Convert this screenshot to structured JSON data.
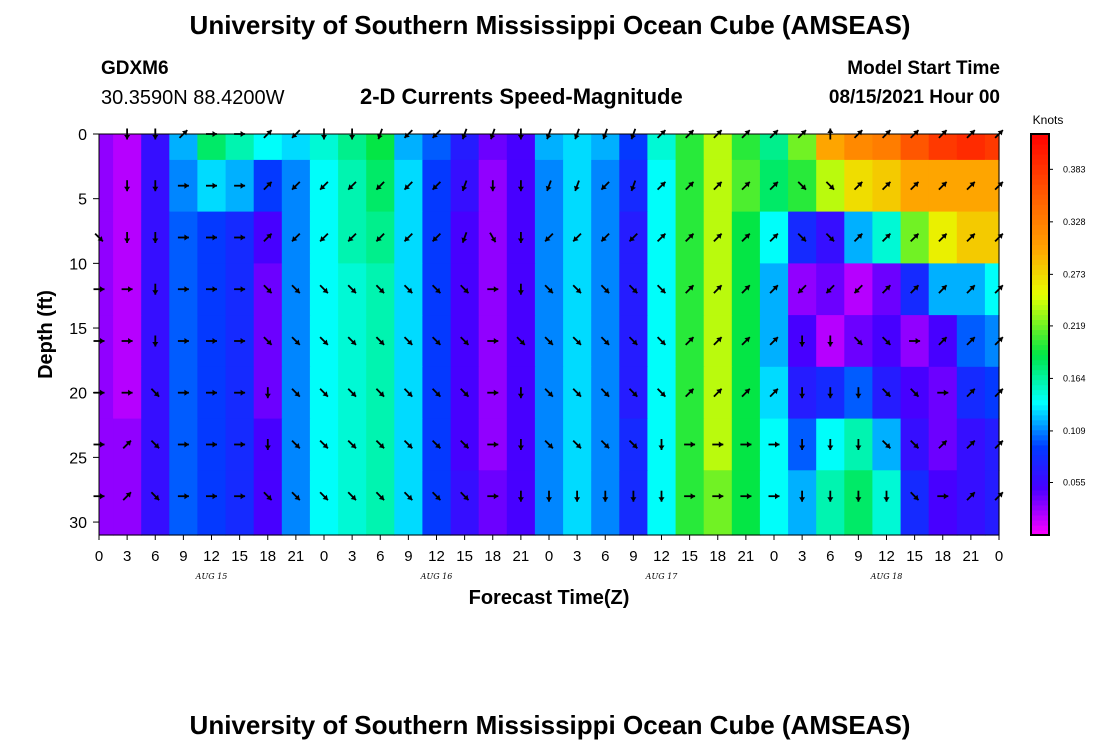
{
  "header": {
    "title": "University of Southern Mississippi Ocean Cube (AMSEAS)",
    "station": "GDXM6",
    "coordinates": "30.3590N  88.4200W",
    "plot_title": "2-D Currents Speed-Magnitude",
    "model_start_label": "Model Start Time",
    "model_start_value": "08/15/2021 Hour 00"
  },
  "footer": {
    "title": "University of Southern Mississippi Ocean Cube (AMSEAS)"
  },
  "chart_data": {
    "type": "heatmap",
    "xlabel": "Forecast Time(Z)",
    "ylabel": "Depth (ft)",
    "colorbar_label": "Knots",
    "x_tick_labels": [
      "0",
      "3",
      "6",
      "9",
      "12",
      "15",
      "18",
      "21",
      "0",
      "3",
      "6",
      "9",
      "12",
      "15",
      "18",
      "21",
      "0",
      "3",
      "6",
      "9",
      "12",
      "15",
      "18",
      "21",
      "0",
      "3",
      "6",
      "9",
      "12",
      "15",
      "18",
      "21",
      "0"
    ],
    "day_labels": [
      "AUG 15",
      "AUG 16",
      "AUG 17",
      "AUG 18"
    ],
    "y_ticks": [
      0,
      5,
      10,
      15,
      20,
      25,
      30
    ],
    "ylim": [
      0,
      31
    ],
    "colorbar_ticks": [
      "0.383",
      "0.328",
      "0.273",
      "0.219",
      "0.164",
      "0.109",
      "0.055"
    ],
    "color_range": [
      0,
      0.42
    ],
    "x_hours": [
      0,
      3,
      6,
      9,
      12,
      15,
      18,
      21,
      24,
      27,
      30,
      33,
      36,
      39,
      42,
      45,
      48,
      51,
      54,
      57,
      60,
      63,
      66,
      69,
      72,
      75,
      78,
      81,
      84,
      87,
      90,
      93,
      96
    ],
    "depths_ft": [
      0,
      4,
      8,
      12,
      16,
      20,
      24,
      28
    ],
    "speed_knots": [
      [
        0.03,
        0.02,
        0.06,
        0.12,
        0.18,
        0.16,
        0.14,
        0.13,
        0.15,
        0.17,
        0.19,
        0.12,
        0.1,
        0.07,
        0.04,
        0.05,
        0.12,
        0.13,
        0.12,
        0.09,
        0.15,
        0.2,
        0.24,
        0.2,
        0.17,
        0.22,
        0.3,
        0.32,
        0.33,
        0.36,
        0.38,
        0.39,
        0.38
      ],
      [
        0.03,
        0.02,
        0.06,
        0.11,
        0.13,
        0.12,
        0.09,
        0.11,
        0.14,
        0.16,
        0.18,
        0.13,
        0.09,
        0.06,
        0.03,
        0.05,
        0.11,
        0.13,
        0.11,
        0.08,
        0.14,
        0.2,
        0.24,
        0.21,
        0.18,
        0.2,
        0.24,
        0.27,
        0.28,
        0.3,
        0.3,
        0.3,
        0.3
      ],
      [
        0.03,
        0.02,
        0.06,
        0.1,
        0.09,
        0.08,
        0.05,
        0.11,
        0.14,
        0.16,
        0.17,
        0.13,
        0.09,
        0.05,
        0.03,
        0.05,
        0.11,
        0.13,
        0.11,
        0.07,
        0.14,
        0.2,
        0.24,
        0.19,
        0.14,
        0.08,
        0.06,
        0.12,
        0.15,
        0.22,
        0.26,
        0.28,
        0.28
      ],
      [
        0.03,
        0.02,
        0.06,
        0.1,
        0.09,
        0.08,
        0.04,
        0.11,
        0.14,
        0.15,
        0.16,
        0.13,
        0.09,
        0.05,
        0.03,
        0.05,
        0.11,
        0.13,
        0.11,
        0.07,
        0.14,
        0.2,
        0.24,
        0.19,
        0.12,
        0.03,
        0.04,
        0.02,
        0.04,
        0.08,
        0.12,
        0.12,
        0.14
      ],
      [
        0.03,
        0.02,
        0.06,
        0.1,
        0.09,
        0.08,
        0.04,
        0.11,
        0.14,
        0.15,
        0.16,
        0.13,
        0.09,
        0.05,
        0.03,
        0.05,
        0.11,
        0.13,
        0.11,
        0.07,
        0.14,
        0.2,
        0.24,
        0.19,
        0.12,
        0.05,
        0.02,
        0.04,
        0.05,
        0.03,
        0.05,
        0.1,
        0.11
      ],
      [
        0.03,
        0.02,
        0.06,
        0.1,
        0.09,
        0.08,
        0.04,
        0.11,
        0.14,
        0.15,
        0.16,
        0.13,
        0.09,
        0.05,
        0.03,
        0.05,
        0.11,
        0.13,
        0.11,
        0.07,
        0.14,
        0.2,
        0.24,
        0.19,
        0.13,
        0.07,
        0.08,
        0.1,
        0.07,
        0.05,
        0.04,
        0.08,
        0.09
      ],
      [
        0.03,
        0.03,
        0.06,
        0.1,
        0.09,
        0.08,
        0.05,
        0.11,
        0.14,
        0.15,
        0.16,
        0.13,
        0.09,
        0.05,
        0.03,
        0.05,
        0.11,
        0.13,
        0.11,
        0.08,
        0.14,
        0.2,
        0.24,
        0.19,
        0.14,
        0.1,
        0.14,
        0.16,
        0.12,
        0.06,
        0.04,
        0.06,
        0.07
      ],
      [
        0.03,
        0.03,
        0.06,
        0.1,
        0.09,
        0.08,
        0.05,
        0.11,
        0.14,
        0.15,
        0.16,
        0.13,
        0.09,
        0.06,
        0.04,
        0.05,
        0.11,
        0.13,
        0.11,
        0.08,
        0.14,
        0.2,
        0.22,
        0.19,
        0.14,
        0.12,
        0.16,
        0.18,
        0.15,
        0.08,
        0.05,
        0.06,
        0.07
      ]
    ],
    "arrow_direction_deg": [
      [
        null,
        180,
        180,
        45,
        90,
        90,
        45,
        225,
        180,
        180,
        200,
        225,
        225,
        200,
        200,
        180,
        200,
        200,
        200,
        200,
        45,
        45,
        45,
        45,
        45,
        45,
        0,
        45,
        45,
        45,
        45,
        45,
        45
      ],
      [
        null,
        180,
        180,
        90,
        90,
        90,
        45,
        225,
        225,
        225,
        225,
        225,
        225,
        200,
        180,
        180,
        200,
        200,
        225,
        200,
        45,
        45,
        45,
        45,
        45,
        135,
        135,
        45,
        45,
        45,
        45,
        45,
        45
      ],
      [
        135,
        180,
        180,
        90,
        90,
        90,
        45,
        225,
        225,
        225,
        225,
        225,
        225,
        200,
        150,
        180,
        225,
        225,
        225,
        225,
        45,
        45,
        45,
        45,
        45,
        135,
        135,
        45,
        45,
        45,
        45,
        45,
        45
      ],
      [
        90,
        90,
        180,
        90,
        90,
        90,
        135,
        135,
        135,
        135,
        135,
        135,
        135,
        135,
        90,
        180,
        135,
        135,
        135,
        135,
        135,
        45,
        45,
        45,
        45,
        225,
        225,
        225,
        45,
        45,
        45,
        45,
        45
      ],
      [
        90,
        90,
        180,
        90,
        90,
        90,
        135,
        135,
        135,
        135,
        135,
        135,
        135,
        135,
        90,
        135,
        135,
        135,
        135,
        135,
        135,
        45,
        45,
        45,
        45,
        180,
        180,
        135,
        135,
        90,
        45,
        45,
        45
      ],
      [
        90,
        90,
        135,
        90,
        90,
        90,
        180,
        135,
        135,
        135,
        135,
        135,
        135,
        135,
        90,
        180,
        135,
        135,
        135,
        135,
        135,
        45,
        45,
        45,
        45,
        180,
        180,
        180,
        135,
        135,
        90,
        45,
        45
      ],
      [
        90,
        45,
        135,
        90,
        90,
        90,
        180,
        135,
        135,
        135,
        135,
        135,
        135,
        135,
        90,
        180,
        135,
        135,
        135,
        135,
        180,
        90,
        90,
        90,
        90,
        180,
        180,
        180,
        135,
        135,
        45,
        45,
        45
      ],
      [
        90,
        45,
        135,
        90,
        90,
        90,
        135,
        135,
        135,
        135,
        135,
        135,
        135,
        135,
        90,
        180,
        180,
        180,
        180,
        180,
        180,
        90,
        90,
        90,
        90,
        180,
        180,
        180,
        180,
        135,
        90,
        45,
        45
      ]
    ]
  }
}
